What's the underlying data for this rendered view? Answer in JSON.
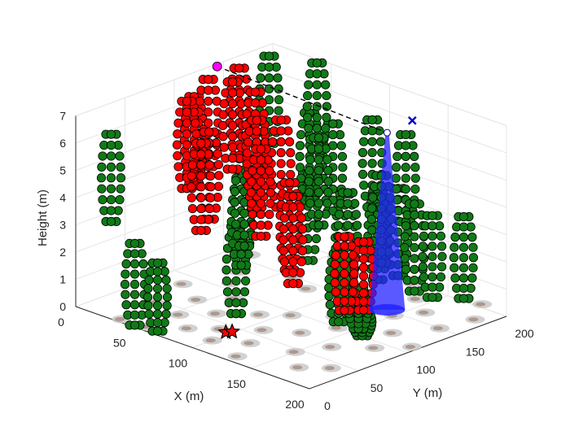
{
  "chart_data": {
    "type": "scatter3d",
    "xlabel": "X (m)",
    "ylabel": "Y (m)",
    "zlabel": "Height (m)",
    "xlim": [
      0,
      200
    ],
    "ylim": [
      0,
      200
    ],
    "zlim": [
      0,
      7
    ],
    "xticks": [
      "0",
      "50",
      "100",
      "150",
      "200"
    ],
    "yticks": [
      "0",
      "50",
      "100",
      "150",
      "200"
    ],
    "zticks": [
      "0",
      "1",
      "2",
      "3",
      "4",
      "5",
      "6",
      "7"
    ],
    "grid": true,
    "colors": {
      "obstructed_trees": "#ff0000",
      "visible_trees": "#117a17",
      "ground_shadow": "#c9c9c9",
      "ground_mark": "#a58a7c",
      "cone": "#2222ff",
      "start_marker": "#ff00ff",
      "target_marker": "#0000cc"
    },
    "trees_red": [
      {
        "x": 6,
        "y": 113,
        "h": 6.3
      },
      {
        "x": 8,
        "y": 125,
        "h": 6.8
      },
      {
        "x": 15,
        "y": 95,
        "h": 6.5
      },
      {
        "x": 5,
        "y": 160,
        "h": 6.7
      },
      {
        "x": 12,
        "y": 145,
        "h": 6.5
      },
      {
        "x": 34,
        "y": 142,
        "h": 6.5
      },
      {
        "x": 52,
        "y": 122,
        "h": 6.0
      },
      {
        "x": 72,
        "y": 123,
        "h": 6.3
      },
      {
        "x": 45,
        "y": 82,
        "h": 6.0
      },
      {
        "x": 55,
        "y": 62,
        "h": 6.0
      },
      {
        "x": 92,
        "y": 108,
        "h": 4.5
      },
      {
        "x": 100,
        "y": 102,
        "h": 4.2
      },
      {
        "x": 75,
        "y": 99,
        "h": 5.6
      },
      {
        "x": 130,
        "y": 138,
        "h": 2.5
      },
      {
        "x": 122,
        "y": 128,
        "h": 2.7
      }
    ],
    "trees_green": [
      {
        "x": 5,
        "y": 30,
        "h": 6.0
      },
      {
        "x": 7,
        "y": 188,
        "h": 6.8
      },
      {
        "x": 48,
        "y": 3,
        "h": 3.0
      },
      {
        "x": 65,
        "y": 6,
        "h": 2.5
      },
      {
        "x": 85,
        "y": 62,
        "h": 3.4
      },
      {
        "x": 75,
        "y": 79,
        "h": 4.8
      },
      {
        "x": 60,
        "y": 100,
        "h": 5.0
      },
      {
        "x": 105,
        "y": 111,
        "h": 5.0
      },
      {
        "x": 133,
        "y": 109,
        "h": 2.5
      },
      {
        "x": 160,
        "y": 101,
        "h": 1.0
      },
      {
        "x": 150,
        "y": 109,
        "h": 1.5
      },
      {
        "x": 120,
        "y": 131,
        "h": 4.2
      },
      {
        "x": 70,
        "y": 178,
        "h": 5.4
      },
      {
        "x": 50,
        "y": 178,
        "h": 5.5
      },
      {
        "x": 10,
        "y": 233,
        "h": 6.0
      },
      {
        "x": 100,
        "y": 128,
        "h": 6.0
      },
      {
        "x": 126,
        "y": 157,
        "h": 4.0
      },
      {
        "x": 113,
        "y": 142,
        "h": 4.0
      },
      {
        "x": 130,
        "y": 173,
        "h": 4.0
      },
      {
        "x": 118,
        "y": 195,
        "h": 5.5
      },
      {
        "x": 102,
        "y": 180,
        "h": 6.0
      },
      {
        "x": 114,
        "y": 175,
        "h": 4.2
      },
      {
        "x": 133,
        "y": 186,
        "h": 3.3
      },
      {
        "x": 145,
        "y": 190,
        "h": 3.0
      },
      {
        "x": 160,
        "y": 204,
        "h": 3.0
      }
    ],
    "ground_spots": [
      {
        "x": 35,
        "y": 5
      },
      {
        "x": 55,
        "y": 7
      },
      {
        "x": 30,
        "y": 45
      },
      {
        "x": 55,
        "y": 40
      },
      {
        "x": 75,
        "y": 25
      },
      {
        "x": 100,
        "y": 20
      },
      {
        "x": 120,
        "y": 35
      },
      {
        "x": 150,
        "y": 45
      },
      {
        "x": 170,
        "y": 25
      },
      {
        "x": 185,
        "y": 40
      },
      {
        "x": 20,
        "y": 85
      },
      {
        "x": 40,
        "y": 110
      },
      {
        "x": 70,
        "y": 60
      },
      {
        "x": 90,
        "y": 80
      },
      {
        "x": 110,
        "y": 60
      },
      {
        "x": 130,
        "y": 75
      },
      {
        "x": 160,
        "y": 70
      },
      {
        "x": 180,
        "y": 90
      },
      {
        "x": 140,
        "y": 100
      },
      {
        "x": 170,
        "y": 120
      },
      {
        "x": 185,
        "y": 150
      },
      {
        "x": 190,
        "y": 180
      },
      {
        "x": 160,
        "y": 165
      },
      {
        "x": 150,
        "y": 145
      },
      {
        "x": 105,
        "y": 95
      },
      {
        "x": 125,
        "y": 115
      },
      {
        "x": 60,
        "y": 150
      },
      {
        "x": 80,
        "y": 140
      },
      {
        "x": 30,
        "y": 130
      },
      {
        "x": 15,
        "y": 160
      },
      {
        "x": 175,
        "y": 205
      },
      {
        "x": 140,
        "y": 180
      },
      {
        "x": 100,
        "y": 160
      },
      {
        "x": 120,
        "y": 200
      },
      {
        "x": 55,
        "y": 200
      },
      {
        "x": 90,
        "y": 40
      },
      {
        "x": 130,
        "y": 10
      },
      {
        "x": 195,
        "y": 110
      },
      {
        "x": 60,
        "y": 90
      },
      {
        "x": 45,
        "y": 70
      }
    ],
    "cone": {
      "x": 140,
      "y": 150,
      "h_bottom": 0.0,
      "h_top": 6.5,
      "r_bottom": 10,
      "r_top": 1
    },
    "path": {
      "from": {
        "x": 3,
        "y": 140,
        "h": 7.0
      },
      "to": {
        "x": 140,
        "y": 150,
        "h": 6.5
      }
    },
    "start_marker": {
      "x": 3,
      "y": 140,
      "h": 7.0
    },
    "target_marker": {
      "x": 143,
      "y": 172,
      "h": 6.7
    },
    "stars": [
      {
        "x": 104,
        "y": 29,
        "h": 0.0
      },
      {
        "x": 106,
        "y": 33,
        "h": 0.0
      }
    ]
  }
}
